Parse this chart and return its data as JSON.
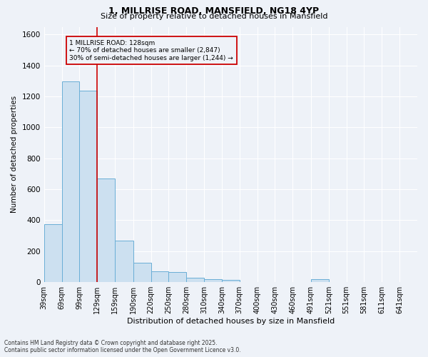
{
  "title1": "1, MILLRISE ROAD, MANSFIELD, NG18 4YP",
  "title2": "Size of property relative to detached houses in Mansfield",
  "xlabel": "Distribution of detached houses by size in Mansfield",
  "ylabel": "Number of detached properties",
  "footnote1": "Contains HM Land Registry data © Crown copyright and database right 2025.",
  "footnote2": "Contains public sector information licensed under the Open Government Licence v3.0.",
  "bins_left": [
    39,
    69,
    99,
    129,
    159,
    190,
    220,
    250,
    280,
    310,
    340,
    370,
    400,
    430,
    460,
    491,
    521,
    551,
    581,
    611
  ],
  "bin_widths": [
    30,
    30,
    30,
    30,
    31,
    30,
    30,
    30,
    30,
    30,
    30,
    30,
    30,
    30,
    31,
    30,
    30,
    30,
    30,
    30
  ],
  "bin_labels": [
    "39sqm",
    "69sqm",
    "99sqm",
    "129sqm",
    "159sqm",
    "190sqm",
    "220sqm",
    "250sqm",
    "280sqm",
    "310sqm",
    "340sqm",
    "370sqm",
    "400sqm",
    "430sqm",
    "460sqm",
    "491sqm",
    "521sqm",
    "551sqm",
    "581sqm",
    "611sqm",
    "641sqm"
  ],
  "tick_positions": [
    39,
    69,
    99,
    129,
    159,
    190,
    220,
    250,
    280,
    310,
    340,
    370,
    400,
    430,
    460,
    491,
    521,
    551,
    581,
    611,
    641
  ],
  "values": [
    375,
    1295,
    1235,
    670,
    270,
    125,
    70,
    65,
    30,
    18,
    15,
    0,
    0,
    0,
    0,
    20,
    0,
    0,
    0,
    0
  ],
  "bar_color": "#cce0f0",
  "bar_edge_color": "#6aaed6",
  "red_line_x": 129,
  "xlim_left": 39,
  "xlim_right": 671,
  "ylim": [
    0,
    1650
  ],
  "yticks": [
    0,
    200,
    400,
    600,
    800,
    1000,
    1200,
    1400,
    1600
  ],
  "annotation_line1": "1 MILLRISE ROAD: 128sqm",
  "annotation_line2": "← 70% of detached houses are smaller (2,847)",
  "annotation_line3": "30% of semi-detached houses are larger (1,244) →",
  "annotation_box_color": "#cc0000",
  "background_color": "#eef2f8",
  "grid_color": "#ffffff",
  "title1_fontsize": 9,
  "title2_fontsize": 8,
  "ylabel_fontsize": 7.5,
  "xlabel_fontsize": 8,
  "tick_fontsize": 7,
  "footnote_fontsize": 5.5
}
